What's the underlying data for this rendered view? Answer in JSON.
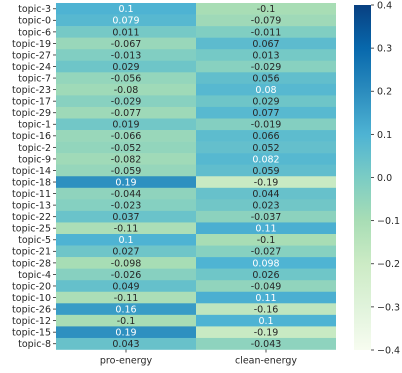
{
  "chart_data": {
    "type": "heatmap",
    "title": "",
    "xlabel": "",
    "ylabel": "",
    "columns": [
      "pro-energy",
      "clean-energy"
    ],
    "rows": [
      {
        "label": "topic-3",
        "values": [
          0.1,
          -0.1
        ],
        "text": [
          "0.1",
          "-0.1"
        ]
      },
      {
        "label": "topic-0",
        "values": [
          0.079,
          -0.079
        ],
        "text": [
          "0.079",
          "-0.079"
        ]
      },
      {
        "label": "topic-6",
        "values": [
          0.011,
          -0.011
        ],
        "text": [
          "0.011",
          "-0.011"
        ]
      },
      {
        "label": "topic-19",
        "values": [
          -0.067,
          0.067
        ],
        "text": [
          "-0.067",
          "0.067"
        ]
      },
      {
        "label": "topic-27",
        "values": [
          -0.013,
          0.013
        ],
        "text": [
          "-0.013",
          "0.013"
        ]
      },
      {
        "label": "topic-24",
        "values": [
          0.029,
          -0.029
        ],
        "text": [
          "0.029",
          "-0.029"
        ]
      },
      {
        "label": "topic-7",
        "values": [
          -0.056,
          0.056
        ],
        "text": [
          "-0.056",
          "0.056"
        ]
      },
      {
        "label": "topic-23",
        "values": [
          -0.08,
          0.08
        ],
        "text": [
          "-0.08",
          "0.08"
        ]
      },
      {
        "label": "topic-17",
        "values": [
          -0.029,
          0.029
        ],
        "text": [
          "-0.029",
          "0.029"
        ]
      },
      {
        "label": "topic-29",
        "values": [
          -0.077,
          0.077
        ],
        "text": [
          "-0.077",
          "0.077"
        ]
      },
      {
        "label": "topic-1",
        "values": [
          0.019,
          -0.019
        ],
        "text": [
          "0.019",
          "-0.019"
        ]
      },
      {
        "label": "topic-16",
        "values": [
          -0.066,
          0.066
        ],
        "text": [
          "-0.066",
          "0.066"
        ]
      },
      {
        "label": "topic-2",
        "values": [
          -0.052,
          0.052
        ],
        "text": [
          "-0.052",
          "0.052"
        ]
      },
      {
        "label": "topic-9",
        "values": [
          -0.082,
          0.082
        ],
        "text": [
          "-0.082",
          "0.082"
        ]
      },
      {
        "label": "topic-14",
        "values": [
          -0.059,
          0.059
        ],
        "text": [
          "-0.059",
          "0.059"
        ]
      },
      {
        "label": "topic-18",
        "values": [
          0.19,
          -0.19
        ],
        "text": [
          "0.19",
          "-0.19"
        ]
      },
      {
        "label": "topic-11",
        "values": [
          -0.044,
          0.044
        ],
        "text": [
          "-0.044",
          "0.044"
        ]
      },
      {
        "label": "topic-13",
        "values": [
          -0.023,
          0.023
        ],
        "text": [
          "-0.023",
          "0.023"
        ]
      },
      {
        "label": "topic-22",
        "values": [
          0.037,
          -0.037
        ],
        "text": [
          "0.037",
          "-0.037"
        ]
      },
      {
        "label": "topic-25",
        "values": [
          -0.11,
          0.11
        ],
        "text": [
          "-0.11",
          "0.11"
        ]
      },
      {
        "label": "topic-5",
        "values": [
          0.1,
          -0.1
        ],
        "text": [
          "0.1",
          "-0.1"
        ]
      },
      {
        "label": "topic-21",
        "values": [
          0.027,
          -0.027
        ],
        "text": [
          "0.027",
          "-0.027"
        ]
      },
      {
        "label": "topic-28",
        "values": [
          -0.098,
          0.098
        ],
        "text": [
          "-0.098",
          "0.098"
        ]
      },
      {
        "label": "topic-4",
        "values": [
          -0.026,
          0.026
        ],
        "text": [
          "-0.026",
          "0.026"
        ]
      },
      {
        "label": "topic-20",
        "values": [
          0.049,
          -0.049
        ],
        "text": [
          "0.049",
          "-0.049"
        ]
      },
      {
        "label": "topic-10",
        "values": [
          -0.11,
          0.11
        ],
        "text": [
          "-0.11",
          "0.11"
        ]
      },
      {
        "label": "topic-26",
        "values": [
          0.16,
          -0.16
        ],
        "text": [
          "0.16",
          "-0.16"
        ]
      },
      {
        "label": "topic-12",
        "values": [
          -0.1,
          0.1
        ],
        "text": [
          "-0.1",
          "0.1"
        ]
      },
      {
        "label": "topic-15",
        "values": [
          0.19,
          -0.19
        ],
        "text": [
          "0.19",
          "-0.19"
        ]
      },
      {
        "label": "topic-8",
        "values": [
          0.043,
          -0.043
        ],
        "text": [
          "0.043",
          "-0.043"
        ]
      }
    ],
    "colorbar": {
      "vmin": -0.4,
      "vmax": 0.4,
      "ticks": [
        0.4,
        0.3,
        0.2,
        0.1,
        0.0,
        -0.1,
        -0.2,
        -0.3,
        -0.4
      ],
      "tick_labels": [
        "0.4",
        "0.3",
        "0.2",
        "0.1",
        "0.0",
        "−0.1",
        "−0.2",
        "−0.3",
        "−0.4"
      ],
      "colormap": "GnBu",
      "stops": [
        "#f7fcf0",
        "#e0f3db",
        "#ccebc5",
        "#a8ddb5",
        "#7bccc4",
        "#4eb3d3",
        "#2b8cbe",
        "#0868ac",
        "#084081"
      ]
    }
  }
}
